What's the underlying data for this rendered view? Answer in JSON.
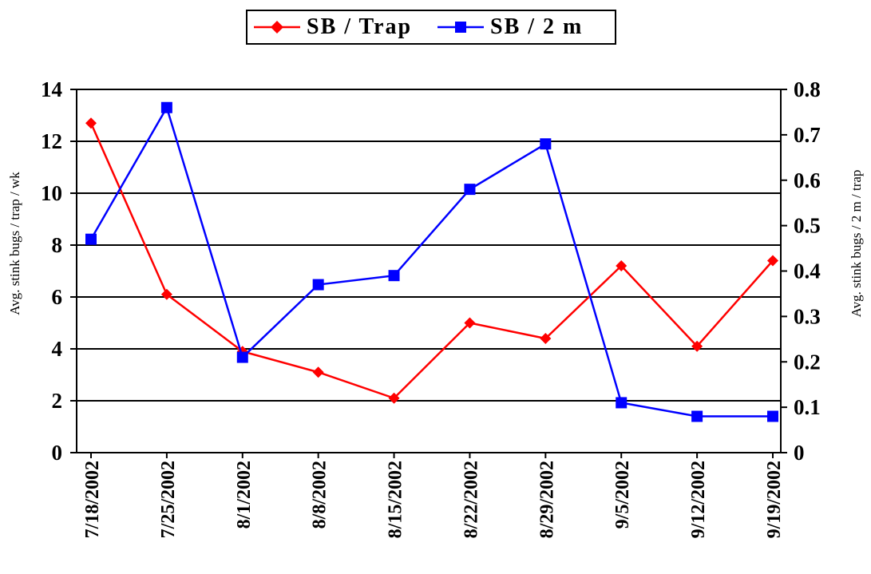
{
  "chart_data": {
    "type": "line",
    "categories": [
      "7/18/2002",
      "7/25/2002",
      "8/1/2002",
      "8/8/2002",
      "8/15/2002",
      "8/22/2002",
      "8/29/2002",
      "9/5/2002",
      "9/12/2002",
      "9/19/2002"
    ],
    "series": [
      {
        "name": "SB / Trap",
        "axis": "left",
        "color": "#ff0000",
        "marker": "diamond",
        "values": [
          12.7,
          6.1,
          3.9,
          3.1,
          2.1,
          5.0,
          4.4,
          7.2,
          4.1,
          7.4
        ]
      },
      {
        "name": "SB / 2 m",
        "axis": "right",
        "color": "#0000ff",
        "marker": "square",
        "values": [
          0.47,
          0.76,
          0.21,
          0.37,
          0.39,
          0.58,
          0.68,
          0.11,
          0.08,
          0.08
        ]
      }
    ],
    "ylabel": "Avg. stink bugs / trap / wk",
    "y2label": "Avg. stink bugs / 2 m / trap",
    "ylim": [
      0,
      14
    ],
    "y2lim": [
      0,
      0.8
    ],
    "yticks": [
      "0",
      "2",
      "4",
      "6",
      "8",
      "10",
      "12",
      "14"
    ],
    "y2ticks": [
      "0",
      "0.1",
      "0.2",
      "0.3",
      "0.4",
      "0.5",
      "0.6",
      "0.7",
      "0.8"
    ],
    "grid": true,
    "legend": "top-center"
  }
}
